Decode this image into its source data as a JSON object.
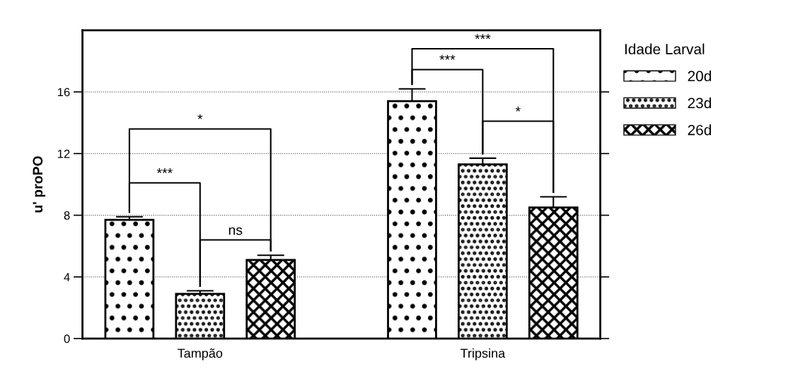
{
  "chart_data": {
    "type": "bar",
    "ylabel": "u' proPO",
    "legend_title": "Idade Larval",
    "categories": [
      "Tampão",
      "Tripsina"
    ],
    "series": [
      {
        "name": "20d",
        "color": "#ffffff",
        "values": [
          7.7,
          15.4
        ],
        "errors": [
          0.2,
          0.8
        ]
      },
      {
        "name": "23d",
        "color": "#ffffff",
        "values": [
          2.9,
          11.3
        ],
        "errors": [
          0.2,
          0.4
        ]
      },
      {
        "name": "26d",
        "color": "#ffffff",
        "values": [
          5.1,
          8.5
        ],
        "errors": [
          0.3,
          0.7
        ]
      }
    ],
    "ylim": [
      0,
      20
    ],
    "yticks": [
      0,
      4,
      8,
      12,
      16
    ],
    "grid": "y",
    "legend": "top right",
    "annotations": [
      "*",
      "***",
      "ns",
      "***",
      "***",
      "*"
    ]
  }
}
